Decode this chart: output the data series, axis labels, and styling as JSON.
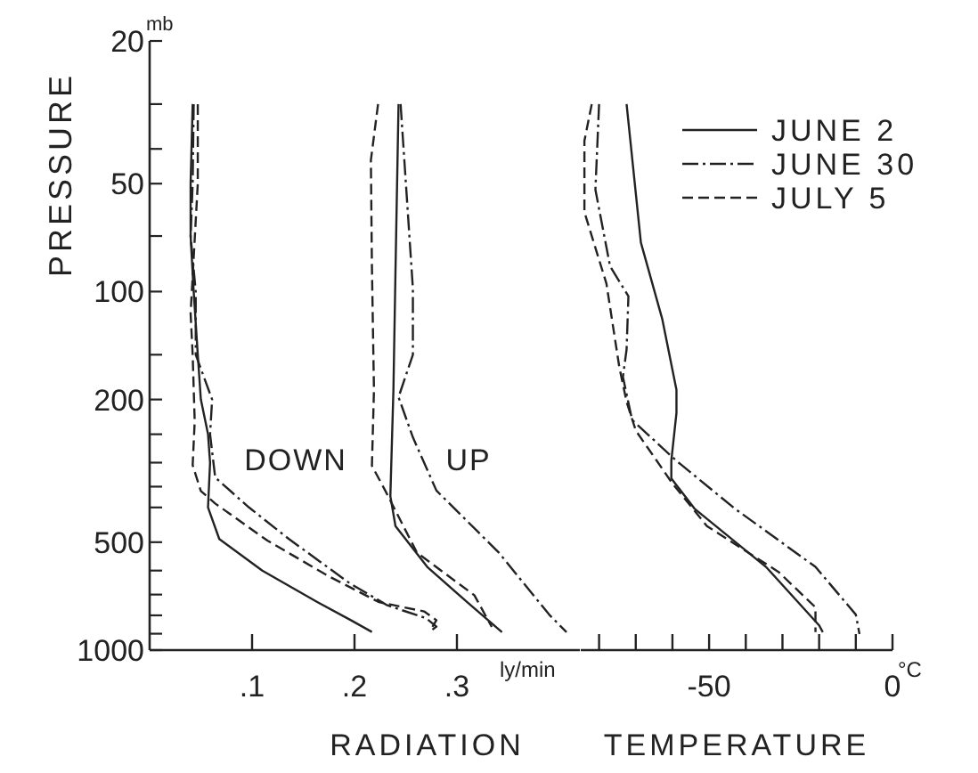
{
  "chart_data": [
    {
      "type": "line",
      "xlabel": "RADIATION",
      "ylabel": "PRESSURE",
      "xlim": [
        0,
        0.42
      ],
      "xticks": [
        {
          "value": 0.1,
          "label": ".1"
        },
        {
          "value": 0.2,
          "label": ".2"
        },
        {
          "value": 0.3,
          "label": ".3"
        }
      ],
      "ylim": [
        1000,
        20
      ],
      "yticks": [
        20,
        {
          "value": 30,
          "label": null
        },
        {
          "value": 40,
          "label": null
        },
        50,
        {
          "value": 70,
          "label": null
        },
        100,
        {
          "value": 150,
          "label": null
        },
        200,
        {
          "value": 250,
          "label": null
        },
        {
          "value": 300,
          "label": null
        },
        {
          "value": 350,
          "label": null
        },
        {
          "value": 400,
          "label": null
        },
        500,
        {
          "value": 600,
          "label": null
        },
        {
          "value": 700,
          "label": null
        },
        {
          "value": 800,
          "label": null
        },
        {
          "value": 900,
          "label": null
        },
        1000
      ],
      "log": "y",
      "grid": false,
      "legend": false,
      "annotations": [
        "mb",
        "ly/min",
        "DOWN",
        "UP"
      ],
      "series": [
        {
          "color": "#222222",
          "line_style": "solid",
          "x": [
            0.042,
            0.04,
            0.04,
            0.043,
            0.047,
            0.05,
            0.057,
            0.059,
            0.057,
            0.068,
            0.11,
            0.164,
            0.196,
            0.217
          ],
          "values": [
            30,
            50,
            70,
            100,
            150,
            200,
            250,
            300,
            400,
            490,
            600,
            735,
            824,
            890
          ]
        },
        {
          "color": "#222222",
          "line_style": "dashdot",
          "x": [
            0.043,
            0.042,
            0.04,
            0.045,
            0.045,
            0.061,
            0.059,
            0.064,
            0.097,
            0.136,
            0.195,
            0.232,
            0.27,
            0.28,
            0.273
          ],
          "values": [
            30,
            50,
            70,
            100,
            150,
            200,
            250,
            330,
            400,
            490,
            650,
            750,
            815,
            860,
            890
          ]
        },
        {
          "color": "#222222",
          "line_style": "dashed",
          "x": [
            0.047,
            0.047,
            0.04,
            0.042,
            0.044,
            0.042,
            0.05,
            0.064,
            0.115,
            0.176,
            0.224,
            0.268,
            0.28,
            0.274
          ],
          "values": [
            30,
            50,
            115,
            150,
            230,
            305,
            360,
            390,
            495,
            625,
            735,
            780,
            825,
            880
          ]
        },
        {
          "color": "#222222",
          "line_style": "solid",
          "x": [
            0.243,
            0.24,
            0.238,
            0.235,
            0.24,
            0.271,
            0.31,
            0.344
          ],
          "values": [
            30,
            88,
            188,
            372,
            451,
            586,
            735,
            891
          ]
        },
        {
          "color": "#222222",
          "line_style": "dashdot",
          "x": [
            0.245,
            0.257,
            0.257,
            0.243,
            0.257,
            0.28,
            0.341,
            0.39,
            0.407
          ],
          "values": [
            30,
            98,
            150,
            197,
            255,
            359,
            535,
            796,
            891
          ]
        },
        {
          "color": "#222222",
          "line_style": "dashed",
          "x": [
            0.223,
            0.216,
            0.217,
            0.219,
            0.217,
            0.23,
            0.261,
            0.317,
            0.334
          ],
          "values": [
            30,
            43,
            85,
            188,
            306,
            359,
            535,
            703,
            862
          ]
        }
      ]
    },
    {
      "type": "line",
      "xlabel": "TEMPERATURE",
      "xlim": [
        -85,
        0
      ],
      "xticks": [
        {
          "value": -80,
          "label": null
        },
        {
          "value": -70,
          "label": null
        },
        {
          "value": -60,
          "label": null
        },
        -50,
        {
          "value": -40,
          "label": null
        },
        {
          "value": -30,
          "label": null
        },
        {
          "value": -20,
          "label": null
        },
        {
          "value": -10,
          "label": null
        },
        0
      ],
      "ylim": [
        1000,
        20
      ],
      "log": "y",
      "tick_labels": "x",
      "grid": false,
      "legend": "top right",
      "annotations": [
        "°C"
      ],
      "series": [
        {
          "name": "JUNE 2",
          "color": "#222222",
          "line_style": "solid",
          "x": [
            -72.5,
            -68.6,
            -62.8,
            -58.9,
            -58.9,
            -60.3,
            -60.3,
            -54,
            -34.5,
            -20,
            -19
          ],
          "values": [
            30,
            73,
            119,
            188,
            218,
            296,
            332,
            403,
            586,
            853,
            891
          ]
        },
        {
          "name": "JUNE 30",
          "color": "#222222",
          "line_style": "dashdot",
          "x": [
            -80,
            -81,
            -77,
            -72,
            -72.5,
            -73.5,
            -71,
            -59,
            -43,
            -21,
            -10,
            -9
          ],
          "values": [
            30,
            52,
            85,
            103,
            145,
            173,
            228,
            296,
            403,
            586,
            796,
            902
          ]
        },
        {
          "name": "JULY 5",
          "color": "#222222",
          "line_style": "dashed",
          "x": [
            -82,
            -84,
            -84,
            -78,
            -74.5,
            -72.5,
            -70,
            -60,
            -50.6,
            -31,
            -21,
            -21
          ],
          "values": [
            30,
            38,
            60,
            95,
            162,
            203,
            244,
            343,
            451,
            606,
            760,
            891
          ]
        }
      ]
    }
  ]
}
